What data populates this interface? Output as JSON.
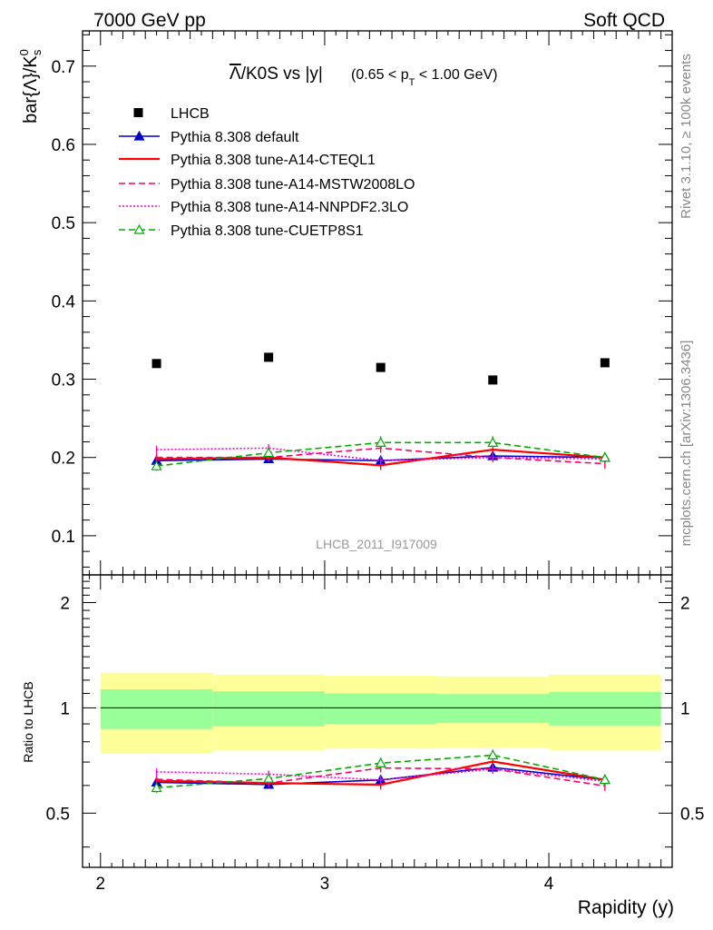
{
  "header": {
    "left": "7000 GeV pp",
    "right": "Soft QCD"
  },
  "side_labels": {
    "rivet": "Rivet 3.1.10, ≥ 100k events",
    "mcplots": "mcplots.cern.ch [arXiv:1306.3436]"
  },
  "watermark": "LHCB_2011_I917009",
  "chart_data": {
    "type": "scatter",
    "title": {
      "main_overline": "Λ",
      "main_rest": "/K0S vs |y|",
      "cut_prefix": "(0.65 < p",
      "cut_sub": "T",
      "cut_suffix": " < 1.00 GeV)"
    },
    "xlabel": "Rapidity (y)",
    "ylabel": {
      "main": "bar{Λ}/K",
      "sup": "0",
      "sub": "s"
    },
    "ratio_ylabel": "Ratio to LHCB",
    "xlim": [
      1.92,
      4.55
    ],
    "ylim": [
      0.05,
      0.745
    ],
    "ratio_ylim": [
      0.35,
      2.4
    ],
    "ratio_scale": "log",
    "x_ticks": [
      "2",
      "3",
      "4"
    ],
    "x_tick_values": [
      2,
      3,
      4
    ],
    "y_ticks": [
      "0.1",
      "0.2",
      "0.3",
      "0.4",
      "0.5",
      "0.6",
      "0.7"
    ],
    "y_tick_values": [
      0.1,
      0.2,
      0.3,
      0.4,
      0.5,
      0.6,
      0.7
    ],
    "ratio_ticks": [
      "0.5",
      "1",
      "2"
    ],
    "ratio_tick_values": [
      0.5,
      1,
      2
    ],
    "x": [
      2.25,
      2.75,
      3.25,
      3.75,
      4.25
    ],
    "bin_edges": [
      2.0,
      2.5,
      3.0,
      3.5,
      4.0,
      4.5
    ],
    "data": {
      "name": "LHCB",
      "values": [
        0.32,
        0.328,
        0.315,
        0.299,
        0.321
      ],
      "band_inner_halfwidth": [
        0.13,
        0.115,
        0.1,
        0.095,
        0.11
      ],
      "band_outer_halfwidth": [
        0.26,
        0.245,
        0.235,
        0.23,
        0.245
      ]
    },
    "series": [
      {
        "name": "Pythia 8.308 default",
        "color": "#0000cc",
        "style": "solid",
        "marker": "triangle-filled",
        "values": [
          0.196,
          0.198,
          0.196,
          0.202,
          0.2
        ],
        "errors": [
          0.005,
          0.005,
          0.005,
          0.005,
          0.005
        ]
      },
      {
        "name": "Pythia 8.308 tune-A14-CTEQL1",
        "color": "#ff0000",
        "style": "solid",
        "marker": "none",
        "values": [
          0.198,
          0.2,
          0.19,
          0.21,
          0.2
        ],
        "errors": [
          0.005,
          0.005,
          0.006,
          0.006,
          0.006
        ]
      },
      {
        "name": "Pythia 8.308 tune-A14-MSTW2008LO",
        "color": "#ff0066",
        "style": "dashed",
        "marker": "none",
        "values": [
          0.2,
          0.2,
          0.212,
          0.2,
          0.192
        ],
        "errors": [
          0.005,
          0.005,
          0.006,
          0.006,
          0.006
        ]
      },
      {
        "name": "Pythia 8.308 tune-A14-NNPDF2.3LO",
        "color": "#ff00cc",
        "style": "dotted",
        "marker": "none",
        "values": [
          0.21,
          0.212,
          0.196,
          0.2,
          0.198
        ],
        "errors": [
          0.005,
          0.005,
          0.005,
          0.005,
          0.005
        ]
      },
      {
        "name": "Pythia 8.308 tune-CUETP8S1",
        "color": "#00aa00",
        "style": "dashed",
        "marker": "triangle-open",
        "values": [
          0.189,
          0.206,
          0.219,
          0.219,
          0.2
        ],
        "errors": [
          0.006,
          0.006,
          0.008,
          0.008,
          0.007
        ]
      }
    ],
    "legend_position": "top-left",
    "grid": false
  }
}
